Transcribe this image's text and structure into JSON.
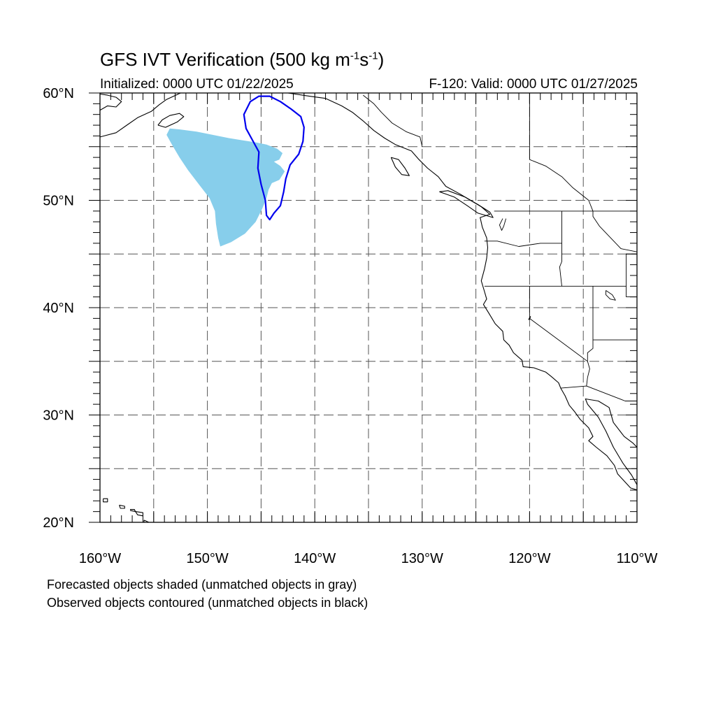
{
  "title": {
    "main": "GFS IVT Verification (500 kg m",
    "exp1": "-1",
    "mid": "s",
    "exp2": "-1",
    "close": ")"
  },
  "init_text": "Initialized: 0000 UTC 01/22/2025",
  "valid_text": "F-120: Valid: 0000 UTC 01/27/2025",
  "footer": {
    "line1": "Forecasted objects shaded (unmatched objects in gray)",
    "line2": "Observed objects contoured (unmatched objects in black)"
  },
  "map": {
    "lon_range": [
      -160,
      -110
    ],
    "lat_range": [
      20,
      60
    ],
    "lat_labels": [
      {
        "lat": 60,
        "label": "60°N"
      },
      {
        "lat": 50,
        "label": "50°N"
      },
      {
        "lat": 40,
        "label": "40°N"
      },
      {
        "lat": 30,
        "label": "30°N"
      },
      {
        "lat": 20,
        "label": "20°N"
      }
    ],
    "lon_labels": [
      {
        "lon": -160,
        "label": "160°W"
      },
      {
        "lon": -150,
        "label": "150°W"
      },
      {
        "lon": -140,
        "label": "140°W"
      },
      {
        "lon": -130,
        "label": "130°W"
      },
      {
        "lon": -120,
        "label": "120°W"
      },
      {
        "lon": -110,
        "label": "110°W"
      }
    ],
    "grid_lats": [
      25,
      30,
      35,
      40,
      45,
      50,
      55
    ],
    "grid_lons": [
      -155,
      -150,
      -145,
      -140,
      -135,
      -130,
      -125,
      -120,
      -115
    ],
    "forecast_color": "#87CEEB",
    "observed_color": "#0000EE",
    "forecast_object": [
      [
        -153.5,
        56.7
      ],
      [
        -152.5,
        56.6
      ],
      [
        -151.0,
        56.4
      ],
      [
        -149.5,
        56.1
      ],
      [
        -148.0,
        55.8
      ],
      [
        -146.8,
        55.6
      ],
      [
        -145.5,
        55.4
      ],
      [
        -144.5,
        55.2
      ],
      [
        -143.5,
        54.8
      ],
      [
        -143.0,
        54.4
      ],
      [
        -143.3,
        53.8
      ],
      [
        -143.8,
        53.6
      ],
      [
        -143.2,
        53.2
      ],
      [
        -142.8,
        52.7
      ],
      [
        -143.3,
        51.9
      ],
      [
        -144.0,
        51.6
      ],
      [
        -144.3,
        51.0
      ],
      [
        -144.5,
        50.2
      ],
      [
        -144.9,
        49.2
      ],
      [
        -145.5,
        48.0
      ],
      [
        -146.5,
        46.9
      ],
      [
        -147.8,
        46.1
      ],
      [
        -148.8,
        45.7
      ],
      [
        -149.0,
        46.5
      ],
      [
        -149.2,
        47.8
      ],
      [
        -149.3,
        49.0
      ],
      [
        -149.8,
        50.2
      ],
      [
        -150.8,
        51.5
      ],
      [
        -151.8,
        52.8
      ],
      [
        -152.6,
        54.0
      ],
      [
        -153.3,
        55.2
      ],
      [
        -153.8,
        56.1
      ]
    ],
    "observed_object": [
      [
        -145.2,
        59.7
      ],
      [
        -144.2,
        59.7
      ],
      [
        -143.2,
        59.2
      ],
      [
        -142.2,
        58.5
      ],
      [
        -141.3,
        57.8
      ],
      [
        -141.0,
        56.8
      ],
      [
        -141.1,
        55.5
      ],
      [
        -141.5,
        54.3
      ],
      [
        -142.3,
        53.3
      ],
      [
        -142.7,
        52.0
      ],
      [
        -142.9,
        50.8
      ],
      [
        -143.2,
        49.5
      ],
      [
        -143.8,
        48.8
      ],
      [
        -144.2,
        48.2
      ],
      [
        -144.5,
        48.6
      ],
      [
        -144.6,
        50.0
      ],
      [
        -145.0,
        51.5
      ],
      [
        -145.3,
        53.0
      ],
      [
        -145.2,
        54.5
      ],
      [
        -145.8,
        55.6
      ],
      [
        -146.4,
        56.7
      ],
      [
        -146.6,
        58.0
      ],
      [
        -146.0,
        59.2
      ]
    ],
    "coast_western_na": [
      [
        -149.0,
        61.0
      ],
      [
        -147.5,
        60.8
      ],
      [
        -146.0,
        60.6
      ],
      [
        -144.5,
        60.2
      ],
      [
        -142.5,
        60.0
      ],
      [
        -140.5,
        59.7
      ],
      [
        -139.0,
        59.5
      ],
      [
        -137.5,
        58.8
      ],
      [
        -136.5,
        58.2
      ],
      [
        -135.5,
        57.4
      ],
      [
        -134.5,
        56.5
      ],
      [
        -133.5,
        55.8
      ],
      [
        -132.5,
        55.2
      ],
      [
        -131.0,
        54.6
      ],
      [
        -130.3,
        53.8
      ],
      [
        -129.5,
        53.0
      ],
      [
        -128.5,
        52.2
      ],
      [
        -127.8,
        51.3
      ],
      [
        -126.5,
        50.6
      ],
      [
        -125.5,
        50.0
      ],
      [
        -124.5,
        49.4
      ],
      [
        -123.7,
        48.7
      ],
      [
        -124.6,
        48.4
      ],
      [
        -124.4,
        47.5
      ],
      [
        -124.0,
        46.5
      ],
      [
        -123.9,
        45.6
      ],
      [
        -124.0,
        44.6
      ],
      [
        -124.2,
        43.6
      ],
      [
        -124.5,
        42.5
      ],
      [
        -124.2,
        41.5
      ],
      [
        -124.0,
        40.8
      ],
      [
        -124.3,
        40.3
      ],
      [
        -123.8,
        39.5
      ],
      [
        -123.2,
        38.5
      ],
      [
        -122.5,
        37.8
      ],
      [
        -122.4,
        37.0
      ],
      [
        -121.9,
        36.5
      ],
      [
        -121.5,
        35.8
      ],
      [
        -120.7,
        35.1
      ],
      [
        -120.6,
        34.5
      ],
      [
        -119.6,
        34.4
      ],
      [
        -118.5,
        34.0
      ],
      [
        -118.0,
        33.6
      ],
      [
        -117.3,
        33.0
      ],
      [
        -117.1,
        32.5
      ],
      [
        -116.7,
        31.8
      ],
      [
        -116.3,
        30.9
      ],
      [
        -115.8,
        30.3
      ],
      [
        -115.3,
        29.6
      ],
      [
        -114.5,
        28.8
      ],
      [
        -114.1,
        28.0
      ],
      [
        -114.5,
        27.6
      ],
      [
        -113.8,
        27.0
      ],
      [
        -112.8,
        26.2
      ],
      [
        -112.1,
        25.3
      ],
      [
        -111.8,
        24.5
      ],
      [
        -110.6,
        23.2
      ],
      [
        -109.6,
        22.9
      ]
    ],
    "coast_gulf_of_california": [
      [
        -110.0,
        23.5
      ],
      [
        -110.5,
        24.4
      ],
      [
        -111.3,
        25.5
      ],
      [
        -112.2,
        27.0
      ],
      [
        -112.9,
        28.5
      ],
      [
        -113.6,
        29.8
      ],
      [
        -114.6,
        31.0
      ],
      [
        -114.8,
        31.5
      ],
      [
        -113.6,
        31.3
      ],
      [
        -112.6,
        30.7
      ],
      [
        -112.2,
        29.3
      ],
      [
        -111.2,
        28.0
      ],
      [
        -110.4,
        27.4
      ],
      [
        -109.5,
        26.5
      ],
      [
        -109.0,
        25.8
      ]
    ],
    "coast_alaska_peninsula": [
      [
        -160.0,
        55.9
      ],
      [
        -158.5,
        56.3
      ],
      [
        -157.5,
        57.0
      ],
      [
        -156.5,
        57.7
      ],
      [
        -155.2,
        58.3
      ],
      [
        -154.5,
        58.9
      ],
      [
        -153.8,
        59.4
      ],
      [
        -152.5,
        60.0
      ],
      [
        -151.5,
        60.6
      ],
      [
        -151.0,
        61.0
      ]
    ],
    "coast_kodiak": [
      [
        -154.6,
        57.0
      ],
      [
        -153.9,
        56.8
      ],
      [
        -152.8,
        57.3
      ],
      [
        -152.2,
        57.8
      ],
      [
        -152.6,
        58.1
      ],
      [
        -153.5,
        57.9
      ],
      [
        -154.2,
        57.5
      ],
      [
        -154.6,
        57.0
      ]
    ],
    "coast_alaska_far_west": [
      [
        -160.0,
        58.4
      ],
      [
        -159.3,
        58.8
      ],
      [
        -158.5,
        58.7
      ],
      [
        -158.0,
        59.2
      ],
      [
        -158.5,
        59.6
      ],
      [
        -159.3,
        59.8
      ],
      [
        -160.0,
        59.9
      ]
    ],
    "coast_haida_gwaii": [
      [
        -132.9,
        54.0
      ],
      [
        -132.2,
        53.8
      ],
      [
        -131.6,
        53.0
      ],
      [
        -131.2,
        52.3
      ],
      [
        -131.9,
        52.4
      ],
      [
        -132.5,
        53.1
      ],
      [
        -132.9,
        54.0
      ]
    ],
    "coast_vancouver_island": [
      [
        -128.4,
        50.8
      ],
      [
        -127.0,
        50.3
      ],
      [
        -125.8,
        49.5
      ],
      [
        -124.8,
        48.8
      ],
      [
        -123.4,
        48.4
      ],
      [
        -123.7,
        48.9
      ],
      [
        -124.8,
        49.6
      ],
      [
        -126.0,
        50.3
      ],
      [
        -127.6,
        50.9
      ],
      [
        -128.4,
        50.8
      ]
    ],
    "coast_hawaii": [
      [
        [
          -159.7,
          22.2
        ],
        [
          -159.3,
          22.2
        ],
        [
          -159.3,
          21.9
        ],
        [
          -159.7,
          21.9
        ],
        [
          -159.7,
          22.2
        ]
      ],
      [
        [
          -158.2,
          21.6
        ],
        [
          -157.7,
          21.5
        ],
        [
          -157.7,
          21.3
        ],
        [
          -158.1,
          21.3
        ],
        [
          -158.2,
          21.6
        ]
      ],
      [
        [
          -157.2,
          21.2
        ],
        [
          -156.8,
          21.2
        ],
        [
          -156.7,
          21.0
        ],
        [
          -157.2,
          21.1
        ]
      ],
      [
        [
          -156.7,
          21.0
        ],
        [
          -156.0,
          20.9
        ],
        [
          -156.0,
          20.6
        ],
        [
          -156.5,
          20.7
        ],
        [
          -156.7,
          21.0
        ]
      ],
      [
        [
          -155.9,
          20.2
        ],
        [
          -155.0,
          19.8
        ],
        [
          -155.6,
          19.1
        ],
        [
          -155.9,
          19.8
        ],
        [
          -155.9,
          20.2
        ]
      ]
    ],
    "borders": [
      [
        [
          -141.0,
          60.0
        ],
        [
          -141.0,
          59.8
        ]
      ],
      [
        [
          -135.5,
          59.8
        ],
        [
          -134.5,
          59.0
        ],
        [
          -133.8,
          58.2
        ],
        [
          -132.8,
          57.2
        ],
        [
          -131.5,
          56.4
        ],
        [
          -130.2,
          55.9
        ],
        [
          -130.0,
          55.0
        ]
      ],
      [
        [
          -123.3,
          49.0
        ],
        [
          -110.0,
          49.0
        ]
      ],
      [
        [
          -120.0,
          60.0
        ],
        [
          -120.0,
          53.8
        ],
        [
          -118.5,
          53.2
        ],
        [
          -117.0,
          52.2
        ],
        [
          -116.0,
          51.2
        ],
        [
          -114.5,
          50.0
        ],
        [
          -114.1,
          49.0
        ]
      ],
      [
        [
          -124.2,
          46.2
        ],
        [
          -123.0,
          46.2
        ],
        [
          -121.0,
          45.7
        ],
        [
          -119.0,
          46.0
        ],
        [
          -117.0,
          46.0
        ]
      ],
      [
        [
          -117.0,
          49.0
        ],
        [
          -117.0,
          44.3
        ],
        [
          -117.2,
          43.8
        ],
        [
          -117.0,
          42.0
        ]
      ],
      [
        [
          -124.2,
          42.0
        ],
        [
          -111.0,
          42.0
        ]
      ],
      [
        [
          -120.0,
          42.0
        ],
        [
          -120.0,
          39.0
        ],
        [
          -114.6,
          35.0
        ]
      ],
      [
        [
          -114.1,
          42.0
        ],
        [
          -114.1,
          36.2
        ],
        [
          -114.6,
          35.8
        ],
        [
          -114.6,
          35.0
        ]
      ],
      [
        [
          -114.1,
          37.0
        ],
        [
          -110.0,
          37.0
        ]
      ],
      [
        [
          -111.0,
          45.0
        ],
        [
          -111.0,
          41.0
        ],
        [
          -110.0,
          41.0
        ]
      ],
      [
        [
          -110.0,
          45.0
        ],
        [
          -111.0,
          45.0
        ]
      ],
      [
        [
          -114.1,
          49.0
        ],
        [
          -114.1,
          48.5
        ],
        [
          -113.5,
          47.6
        ],
        [
          -111.5,
          45.5
        ],
        [
          -110.0,
          45.2
        ]
      ],
      [
        [
          -117.1,
          32.5
        ],
        [
          -114.7,
          32.7
        ],
        [
          -111.1,
          31.3
        ],
        [
          -110.0,
          31.3
        ]
      ],
      [
        [
          -114.7,
          32.7
        ],
        [
          -114.6,
          33.5
        ],
        [
          -114.4,
          34.3
        ],
        [
          -114.6,
          35.0
        ]
      ]
    ],
    "lakes": [
      [
        [
          -112.9,
          41.6
        ],
        [
          -112.3,
          41.2
        ],
        [
          -112.0,
          40.7
        ],
        [
          -112.5,
          40.8
        ],
        [
          -112.9,
          41.2
        ],
        [
          -112.9,
          41.6
        ]
      ],
      [
        [
          -122.2,
          48.3
        ],
        [
          -122.4,
          47.6
        ],
        [
          -122.6,
          47.2
        ],
        [
          -122.8,
          47.7
        ],
        [
          -122.5,
          48.3
        ]
      ],
      [
        [
          -119.9,
          39.2
        ],
        [
          -120.1,
          38.9
        ],
        [
          -120.0,
          38.9
        ],
        [
          -119.9,
          39.2
        ]
      ]
    ]
  }
}
